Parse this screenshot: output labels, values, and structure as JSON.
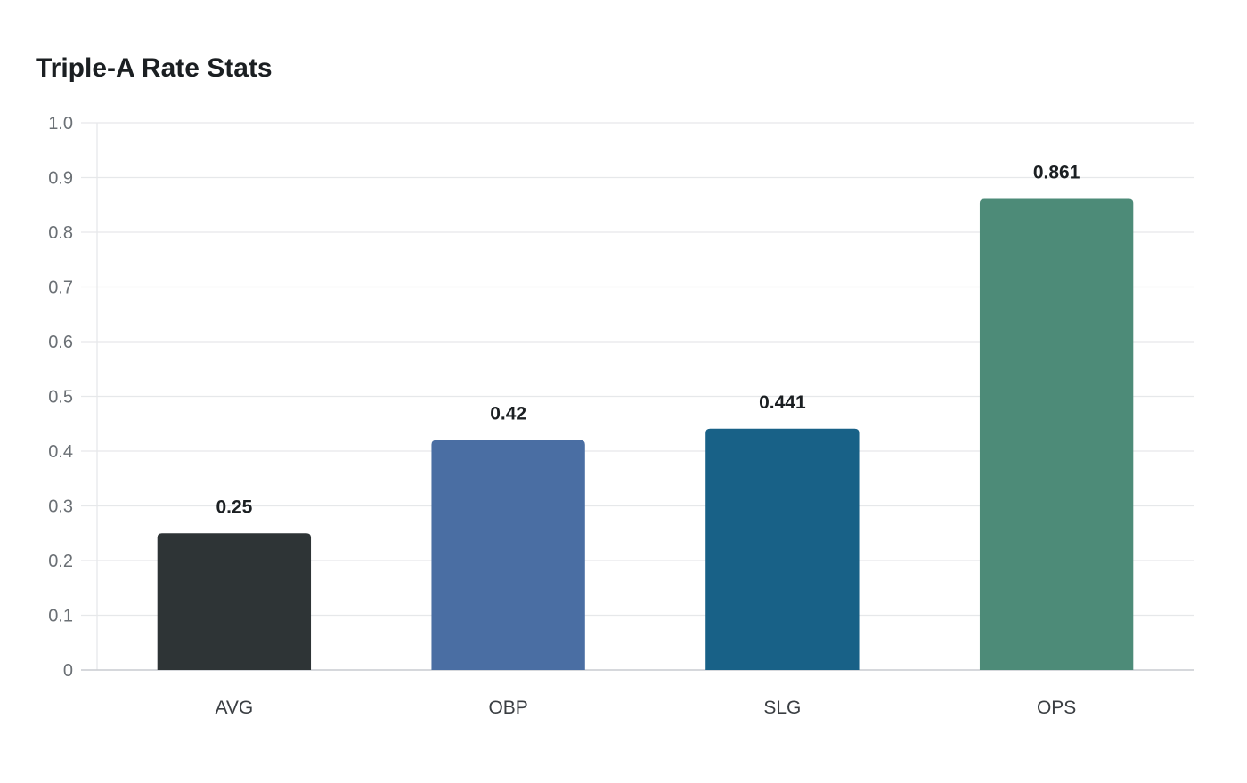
{
  "chart_data": {
    "type": "bar",
    "title": "Triple-A Rate Stats",
    "xlabel": "",
    "ylabel": "",
    "categories": [
      "AVG",
      "OBP",
      "SLG",
      "OPS"
    ],
    "values": [
      0.25,
      0.42,
      0.441,
      0.861
    ],
    "value_labels": [
      "0.25",
      "0.42",
      "0.441",
      "0.861"
    ],
    "colors": [
      "#2e3436",
      "#4a6ea3",
      "#186187",
      "#4d8b78"
    ],
    "ylim": [
      0,
      1.0
    ],
    "yticks": [
      0,
      0.1,
      0.2,
      0.3,
      0.4,
      0.5,
      0.6,
      0.7,
      0.8,
      0.9,
      1.0
    ],
    "ytick_labels": [
      "0",
      "0.1",
      "0.2",
      "0.3",
      "0.4",
      "0.5",
      "0.6",
      "0.7",
      "0.8",
      "0.9",
      "1.0"
    ],
    "grid": true,
    "legend": "none"
  }
}
